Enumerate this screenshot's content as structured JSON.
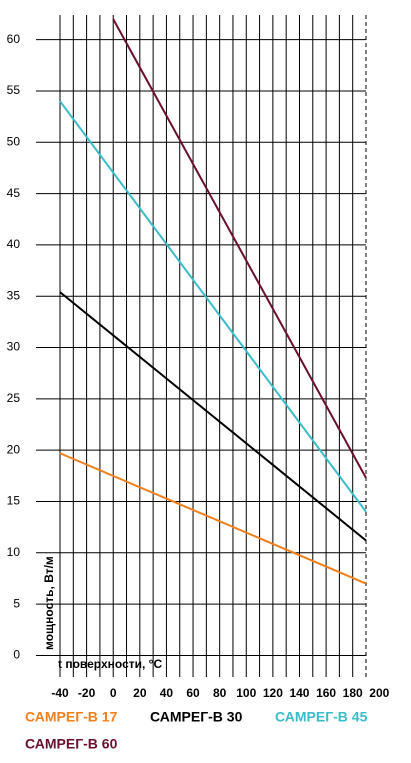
{
  "chart_data": {
    "type": "line",
    "x_label": "t поверхности, °C",
    "y_label": "мощность, Вт/м",
    "xlim": [
      -40,
      190
    ],
    "ylim": [
      -2.1,
      62.4
    ],
    "xticks": [
      -40,
      -20,
      0,
      20,
      40,
      60,
      80,
      100,
      120,
      140,
      160,
      180,
      200
    ],
    "x_minor_grid": [
      -30,
      -10,
      10,
      30,
      50,
      70,
      90,
      110,
      130,
      150,
      170
    ],
    "yticks": [
      0,
      5,
      10,
      15,
      20,
      25,
      30,
      35,
      40,
      45,
      50,
      55,
      60
    ],
    "grid": true,
    "series": [
      {
        "name": "САМРЕГ-В 17",
        "color": "#f07f1e",
        "x": [
          -40,
          190
        ],
        "values": [
          19.7,
          7
        ]
      },
      {
        "name": "САМРЕГ-В 30",
        "color": "#000000",
        "x": [
          -40,
          190
        ],
        "values": [
          35.4,
          11.2
        ]
      },
      {
        "name": "САМРЕГ-В 45",
        "color": "#3bbcc9",
        "x": [
          -40,
          190
        ],
        "values": [
          54,
          14
        ]
      },
      {
        "name": "САМРЕГ-В 60",
        "color": "#6b0f2e",
        "x": [
          0,
          190
        ],
        "values": [
          62,
          17.3
        ]
      }
    ]
  }
}
